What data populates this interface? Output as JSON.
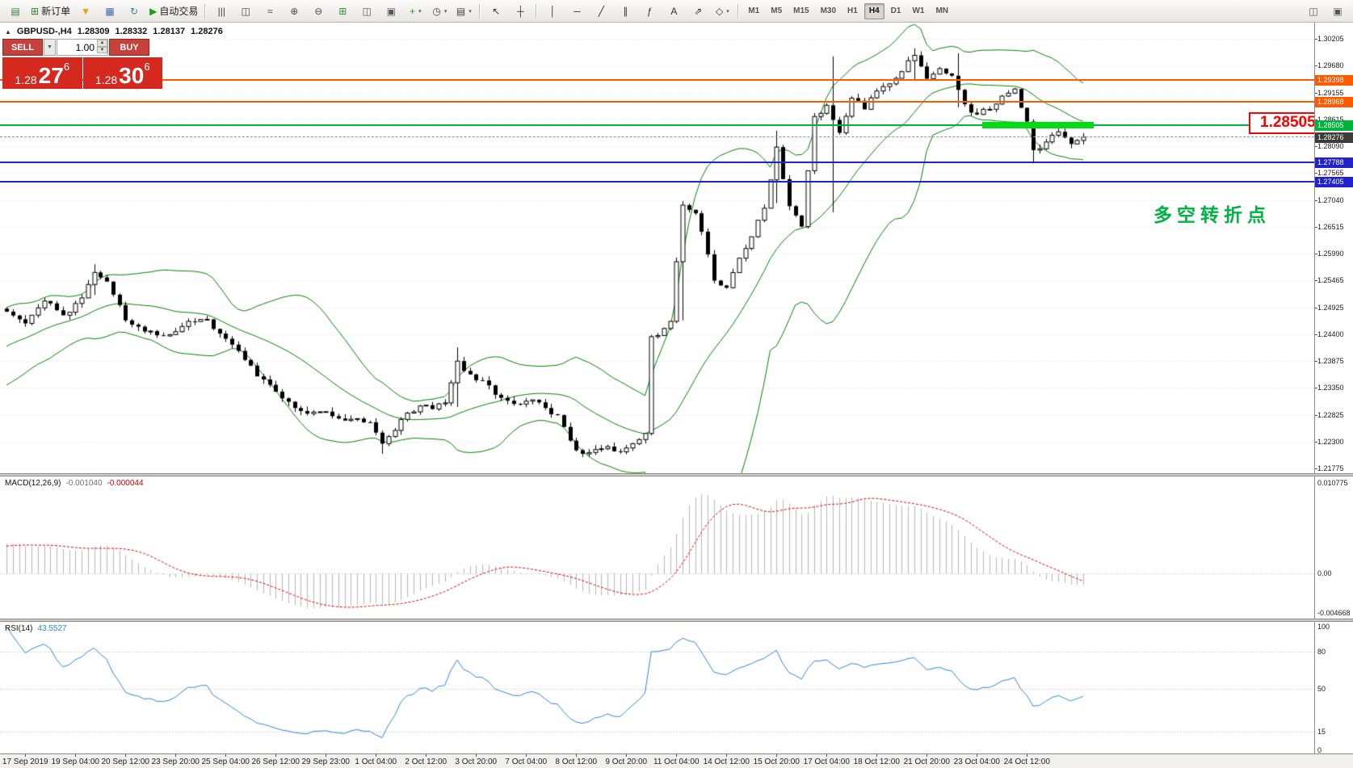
{
  "colors": {
    "candle_outline": "#000000",
    "band_green": "#008000",
    "grid": "#e3e3e3",
    "line_orange": "#ff5a00",
    "line_green": "#00b33c",
    "line_blue": "#2222cc",
    "current_label_bg": "#3c3c3c",
    "highlight_green": "#00dc14",
    "callout_red": "#ff0000",
    "annotation_green": "#00b341",
    "widget_button_red": "#c5413b",
    "widget_price_red": "#d5281e",
    "macd_hist": "#b4b4b4",
    "macd_signal": "#e00000",
    "rsi_blue": "#2e86d8"
  },
  "toolbar": {
    "groups": [
      {
        "items": [
          {
            "button": "app-chart-button",
            "icon": "chart-window-icon",
            "glyph": "▤",
            "color": "#3a7d3a"
          },
          {
            "button": "new-order-button",
            "icon": "new-order-icon",
            "glyph": "⊞",
            "color": "#2e7d32",
            "label": "新订单"
          },
          {
            "button": "funnel-button",
            "icon": "funnel-icon",
            "glyph": "▼",
            "color": "#e0a800"
          },
          {
            "button": "profiles-button",
            "icon": "profiles-icon",
            "glyph": "▦",
            "color": "#4668b0"
          },
          {
            "button": "refresh-button",
            "icon": "refresh-icon",
            "glyph": "↻",
            "color": "#3a7d9d"
          },
          {
            "button": "auto-trading-button",
            "icon": "play-icon",
            "glyph": "▶",
            "color": "#18a018",
            "label": "自动交易"
          }
        ]
      },
      {
        "items": [
          {
            "button": "bar-chart-button",
            "icon": "bar-chart-icon",
            "glyph": "|||",
            "color": "#444"
          },
          {
            "button": "candle-chart-button",
            "icon": "candle-chart-icon",
            "glyph": "◫",
            "color": "#444"
          },
          {
            "button": "line-chart-button",
            "icon": "line-chart-icon",
            "glyph": "≈",
            "color": "#444"
          },
          {
            "button": "zoom-in-button",
            "icon": "zoom-in-icon",
            "glyph": "⊕",
            "color": "#444"
          },
          {
            "button": "zoom-out-button",
            "icon": "zoom-out-icon",
            "glyph": "⊖",
            "color": "#444"
          },
          {
            "button": "grid-button",
            "icon": "grid-icon",
            "glyph": "⊞",
            "color": "#3a8d3a"
          },
          {
            "button": "tile-windows-button",
            "icon": "tile-windows-icon",
            "glyph": "◫",
            "color": "#555"
          },
          {
            "button": "cascade-windows-button",
            "icon": "cascade-windows-icon",
            "glyph": "▣",
            "color": "#555"
          },
          {
            "button": "indicators-button",
            "icon": "indicators-icon",
            "glyph": "+",
            "color": "#2e8d2e",
            "dropdown": true
          },
          {
            "button": "periods-button",
            "icon": "clock-icon",
            "glyph": "◷",
            "color": "#444",
            "dropdown": true
          },
          {
            "button": "templates-button",
            "icon": "template-icon",
            "glyph": "▤",
            "color": "#444",
            "dropdown": true
          }
        ]
      },
      {
        "items": [
          {
            "button": "cursor-button",
            "icon": "cursor-icon",
            "glyph": "↖",
            "color": "#333"
          },
          {
            "button": "crosshair-button",
            "icon": "crosshair-icon",
            "glyph": "┼",
            "color": "#333"
          }
        ]
      },
      {
        "items": [
          {
            "button": "vertical-line-button",
            "icon": "vertical-line-icon",
            "glyph": "│",
            "color": "#333"
          },
          {
            "button": "horizontal-line-button",
            "icon": "horizontal-line-icon",
            "glyph": "─",
            "color": "#333"
          },
          {
            "button": "trendline-button",
            "icon": "trendline-icon",
            "glyph": "╱",
            "color": "#333"
          },
          {
            "button": "channel-button",
            "icon": "channel-icon",
            "glyph": "∥",
            "color": "#333"
          },
          {
            "button": "fibonacci-button",
            "icon": "fibonacci-icon",
            "glyph": "ƒ",
            "color": "#333"
          },
          {
            "button": "text-button",
            "icon": "text-icon",
            "glyph": "A",
            "color": "#333"
          },
          {
            "button": "arrows-button",
            "icon": "arrow-object-icon",
            "glyph": "⇗",
            "color": "#333"
          },
          {
            "button": "shapes-button",
            "icon": "shapes-icon",
            "glyph": "◇",
            "color": "#333",
            "dropdown": true
          }
        ]
      }
    ],
    "timeframes": [
      "M1",
      "M5",
      "M15",
      "M30",
      "H1",
      "H4",
      "D1",
      "W1",
      "MN"
    ],
    "active_timeframe": "H4",
    "right_items": [
      {
        "button": "new-chart-window-button",
        "icon": "window-icon",
        "glyph": "◫",
        "color": "#555"
      },
      {
        "button": "arrange-windows-button",
        "icon": "layout-icon",
        "glyph": "▣",
        "color": "#555"
      }
    ]
  },
  "chart_header": {
    "collapse_glyph": "▲",
    "symbol_period": "GBPUSD-,H4",
    "open": "1.28309",
    "high": "1.28332",
    "low": "1.28137",
    "close": "1.28276"
  },
  "trade_widget": {
    "sell_label": "SELL",
    "buy_label": "BUY",
    "volume": "1.00",
    "sell_price_small": "1.28",
    "sell_price_big": "27",
    "sell_price_sup": "6",
    "buy_price_small": "1.28",
    "buy_price_big": "30",
    "buy_price_sup": "6",
    "dropdown_glyph": "▼",
    "spin_up_glyph": "▲",
    "spin_down_glyph": "▼"
  },
  "price_axis": {
    "ticks": [
      "1.30205",
      "1.29680",
      "1.29155",
      "1.28615",
      "1.28090",
      "1.27565",
      "1.27040",
      "1.26515",
      "1.25990",
      "1.25465",
      "1.24925",
      "1.24400",
      "1.23875",
      "1.23350",
      "1.22825",
      "1.22300",
      "1.21775"
    ]
  },
  "levels": [
    {
      "value": "1.29398",
      "price": 1.29398,
      "color": "#ff5a00",
      "width": 2,
      "dashed": false,
      "label_bg": "#ff5a00"
    },
    {
      "value": "1.28968",
      "price": 1.28968,
      "color": "#ff5a00",
      "width": 2,
      "dashed": false,
      "label_bg": "#ff5a00"
    },
    {
      "value": "1.28505",
      "price": 1.28505,
      "color": "#00b33c",
      "width": 2,
      "dashed": false,
      "label_bg": "#00b33c"
    },
    {
      "value": "1.28276",
      "price": 1.28276,
      "color": "#909090",
      "width": 1,
      "dashed": true,
      "label_bg": "#3c3c3c"
    },
    {
      "value": "1.27788",
      "price": 1.27788,
      "color": "#2222cc",
      "width": 2,
      "dashed": false,
      "label_bg": "#2222cc"
    },
    {
      "value": "1.27405",
      "price": 1.27405,
      "color": "#2222cc",
      "width": 2,
      "dashed": false,
      "label_bg": "#2222cc"
    }
  ],
  "callout": {
    "text": "1.28505"
  },
  "annotation": {
    "text": "多空转折点"
  },
  "time_axis": {
    "first_index": 3,
    "step": 8,
    "labels": [
      "17 Sep 2019",
      "19 Sep 04:00",
      "20 Sep 12:00",
      "23 Sep 20:00",
      "25 Sep 04:00",
      "26 Sep 12:00",
      "29 Sep 23:00",
      "1 Oct 04:00",
      "2 Oct 12:00",
      "3 Oct 20:00",
      "7 Oct 04:00",
      "8 Oct 12:00",
      "9 Oct 20:00",
      "11 Oct 04:00",
      "14 Oct 12:00",
      "15 Oct 20:00",
      "17 Oct 04:00",
      "18 Oct 12:00",
      "21 Oct 20:00",
      "23 Oct 04:00",
      "24 Oct 12:00"
    ]
  },
  "macd_panel": {
    "label": "MACD(12,26,9)",
    "value_main": "-0.001040",
    "value_signal": "-0.000044",
    "axis_top": "0.010775",
    "axis_zero": "0.00",
    "axis_bottom": "-0.004668"
  },
  "rsi_panel": {
    "label": "RSI(14)",
    "value": "43.5527",
    "axis": [
      "100",
      "80",
      "50",
      "15",
      "0"
    ],
    "axis_values": [
      100,
      80,
      50,
      15,
      0
    ],
    "level_values": [
      80,
      50,
      15
    ]
  },
  "chart_data": {
    "type": "candlestick",
    "symbol": "GBPUSD-",
    "timeframe": "H4",
    "price_axis_range": [
      1.21775,
      1.30205
    ],
    "candle_count": 173,
    "noise": 0.0013,
    "wick": 0.0009,
    "seed": 11,
    "warmup": {
      "count": 30,
      "from": 1.2282,
      "to": 1.2472
    },
    "anchors": [
      [
        0,
        1.2485
      ],
      [
        3,
        1.2462
      ],
      [
        6,
        1.2506
      ],
      [
        9,
        1.2478
      ],
      [
        12,
        1.2512
      ],
      [
        14,
        1.2562
      ],
      [
        16,
        1.2544
      ],
      [
        19,
        1.2468
      ],
      [
        22,
        1.2446
      ],
      [
        26,
        1.244
      ],
      [
        29,
        1.2466
      ],
      [
        32,
        1.247
      ],
      [
        34,
        1.2442
      ],
      [
        37,
        1.2408
      ],
      [
        40,
        1.2358
      ],
      [
        43,
        1.2328
      ],
      [
        46,
        1.2296
      ],
      [
        49,
        1.2288
      ],
      [
        52,
        1.228
      ],
      [
        55,
        1.2274
      ],
      [
        58,
        1.2268
      ],
      [
        60,
        1.2226
      ],
      [
        62,
        1.2252
      ],
      [
        64,
        1.2286
      ],
      [
        66,
        1.23
      ],
      [
        68,
        1.2294
      ],
      [
        70,
        1.2306
      ],
      [
        72,
        1.2388
      ],
      [
        74,
        1.2362
      ],
      [
        76,
        1.235
      ],
      [
        78,
        1.2322
      ],
      [
        81,
        1.2304
      ],
      [
        84,
        1.2312
      ],
      [
        86,
        1.2296
      ],
      [
        88,
        1.2282
      ],
      [
        90,
        1.2232
      ],
      [
        92,
        1.2206
      ],
      [
        95,
        1.2216
      ],
      [
        98,
        1.221
      ],
      [
        100,
        1.2226
      ],
      [
        102,
        1.2246
      ],
      [
        103,
        1.2436
      ],
      [
        105,
        1.2452
      ],
      [
        106,
        1.2466
      ],
      [
        108,
        1.2694
      ],
      [
        110,
        1.2678
      ],
      [
        111,
        1.2642
      ],
      [
        113,
        1.2546
      ],
      [
        115,
        1.2532
      ],
      [
        117,
        1.259
      ],
      [
        119,
        1.2632
      ],
      [
        121,
        1.2688
      ],
      [
        123,
        1.2808
      ],
      [
        125,
        1.2692
      ],
      [
        127,
        1.2652
      ],
      [
        129,
        1.2868
      ],
      [
        131,
        1.289
      ],
      [
        133,
        1.2836
      ],
      [
        135,
        1.2904
      ],
      [
        137,
        1.2882
      ],
      [
        139,
        1.2918
      ],
      [
        141,
        1.2932
      ],
      [
        143,
        1.2956
      ],
      [
        145,
        1.2988
      ],
      [
        147,
        1.2942
      ],
      [
        149,
        1.2962
      ],
      [
        151,
        1.2948
      ],
      [
        153,
        1.2892
      ],
      [
        155,
        1.2872
      ],
      [
        157,
        1.2882
      ],
      [
        159,
        1.2908
      ],
      [
        161,
        1.2922
      ],
      [
        163,
        1.2858
      ],
      [
        164,
        1.2802
      ],
      [
        166,
        1.2818
      ],
      [
        168,
        1.2838
      ],
      [
        170,
        1.2814
      ],
      [
        172,
        1.28276
      ]
    ],
    "spikes": [
      [
        14,
        1.2578,
        1.2518
      ],
      [
        60,
        1.225,
        1.2206
      ],
      [
        72,
        1.2415,
        1.2298
      ],
      [
        103,
        1.2438,
        1.2242
      ],
      [
        108,
        1.27,
        1.2468
      ],
      [
        123,
        1.284,
        1.2698
      ],
      [
        132,
        1.2986,
        1.268
      ],
      [
        145,
        1.3002,
        1.2938
      ],
      [
        152,
        1.2992,
        1.2886
      ],
      [
        164,
        1.286,
        1.2776
      ]
    ],
    "overlays": {
      "bollinger": {
        "period": 20,
        "deviation": 2,
        "color": "#008000"
      }
    },
    "macd": {
      "fast": 12,
      "slow": 26,
      "signal": 9,
      "scale_max": 0.010775,
      "scale_min": -0.004668,
      "last_main": -0.00104,
      "last_signal": -4.4e-05
    },
    "rsi": {
      "period": 14,
      "last": 43.5527,
      "levels": [
        80,
        50,
        15
      ]
    }
  }
}
